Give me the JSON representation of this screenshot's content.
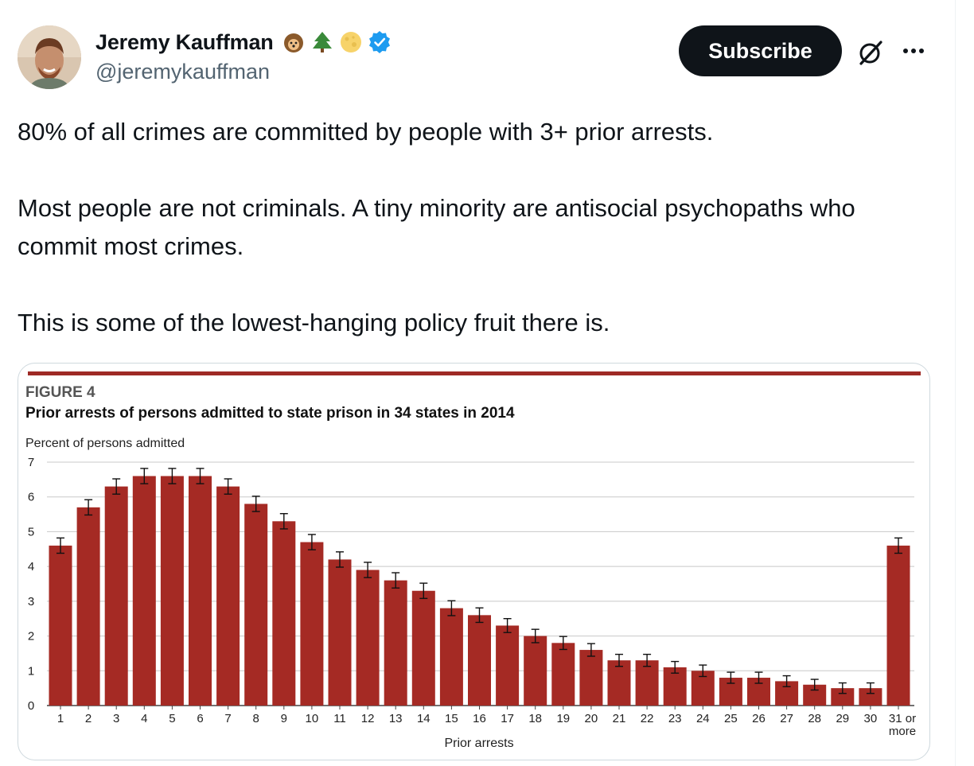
{
  "author": {
    "name": "Jeremy Kauffman",
    "handle": "@jeremykauffman",
    "badges": [
      "hedgehog-emoji",
      "evergreen-tree-emoji",
      "full-moon-emoji",
      "verified-badge-icon"
    ]
  },
  "actions": {
    "subscribe_label": "Subscribe",
    "grok_icon": "grok-icon",
    "more_icon": "more-icon"
  },
  "tweet": {
    "paragraphs": [
      "80% of all crimes are committed by people with 3+ prior arrests.",
      "Most people are not criminals. A tiny minority are antisocial psychopaths who commit most crimes.",
      "This is some of the lowest-hanging policy fruit there is."
    ]
  },
  "colors": {
    "bar": "#a52a24",
    "accent_rule": "#9e2a25",
    "verified": "#1d9bf0"
  },
  "chart_data": {
    "type": "bar",
    "figure_label": "FIGURE 4",
    "title": "Prior arrests of persons admitted to state prison in 34 states in 2014",
    "ylabel": "Percent of persons admitted",
    "xlabel": "Prior arrests",
    "ylim": [
      0,
      7
    ],
    "yticks": [
      "0",
      "1",
      "2",
      "3",
      "4",
      "5",
      "6",
      "7"
    ],
    "grid": true,
    "error_bars": true,
    "categories": [
      "1",
      "2",
      "3",
      "4",
      "5",
      "6",
      "7",
      "8",
      "9",
      "10",
      "11",
      "12",
      "13",
      "14",
      "15",
      "16",
      "17",
      "18",
      "19",
      "20",
      "21",
      "22",
      "23",
      "24",
      "25",
      "26",
      "27",
      "28",
      "29",
      "30",
      "31 or more"
    ],
    "values": [
      4.6,
      5.7,
      6.3,
      6.6,
      6.6,
      6.6,
      6.3,
      5.8,
      5.3,
      4.7,
      4.2,
      3.9,
      3.6,
      3.3,
      2.8,
      2.6,
      2.3,
      2.0,
      1.8,
      1.6,
      1.3,
      1.3,
      1.1,
      1.0,
      0.8,
      0.8,
      0.7,
      0.6,
      0.5,
      0.5,
      4.6
    ]
  }
}
